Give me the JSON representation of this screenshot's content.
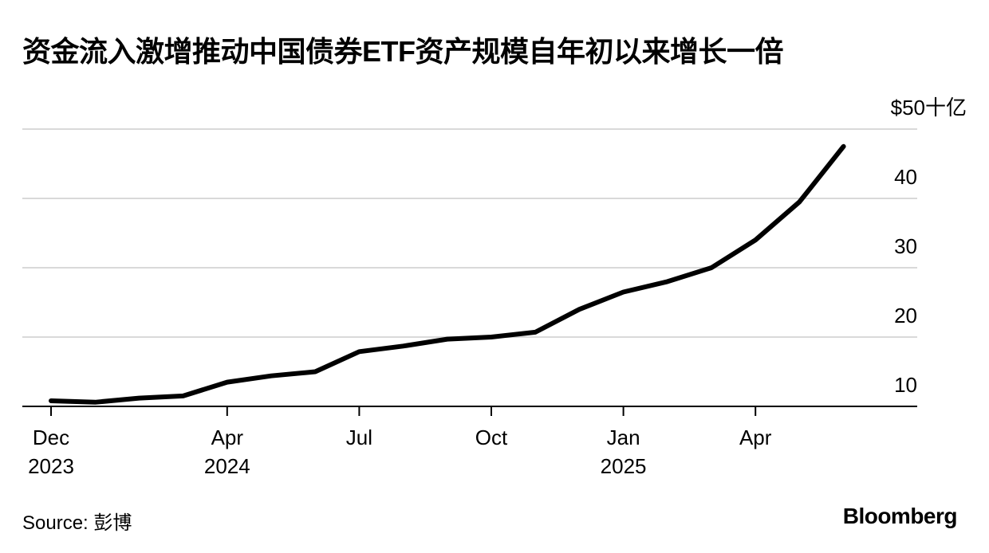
{
  "title": "资金流入激增推动中国债券ETF资产规模自年初以来增长一倍",
  "footer": {
    "source": "Source: 彭博",
    "brand": "Bloomberg"
  },
  "chart_data": {
    "type": "line",
    "title": "资金流入激增推动中国债券ETF资产规模自年初以来增长一倍",
    "xlabel": "",
    "ylabel": "",
    "unit_label": "$50十亿",
    "y_ticks": [
      {
        "value": 50,
        "label": "$50十亿"
      },
      {
        "value": 40,
        "label": "40"
      },
      {
        "value": 30,
        "label": "30"
      },
      {
        "value": 20,
        "label": "20"
      },
      {
        "value": 10,
        "label": "10"
      }
    ],
    "ylim": [
      10,
      50
    ],
    "x_ticks": [
      {
        "label": "Dec",
        "year": "2023",
        "x": "2023-12"
      },
      {
        "label": "Apr",
        "year": "2024",
        "x": "2024-04"
      },
      {
        "label": "Jul",
        "year": "",
        "x": "2024-07"
      },
      {
        "label": "Oct",
        "year": "",
        "x": "2024-10"
      },
      {
        "label": "Jan",
        "year": "2025",
        "x": "2025-01"
      },
      {
        "label": "Apr",
        "year": "",
        "x": "2025-04"
      }
    ],
    "grid": true,
    "series": [
      {
        "name": "",
        "points": [
          {
            "x": "2023-12",
            "y": 10.8
          },
          {
            "x": "2024-01",
            "y": 10.6
          },
          {
            "x": "2024-02",
            "y": 11.2
          },
          {
            "x": "2024-03",
            "y": 11.5
          },
          {
            "x": "2024-04",
            "y": 13.5
          },
          {
            "x": "2024-05",
            "y": 14.4
          },
          {
            "x": "2024-06",
            "y": 15.0
          },
          {
            "x": "2024-07",
            "y": 17.9
          },
          {
            "x": "2024-08",
            "y": 18.7
          },
          {
            "x": "2024-09",
            "y": 19.7
          },
          {
            "x": "2024-10",
            "y": 20.0
          },
          {
            "x": "2024-11",
            "y": 20.7
          },
          {
            "x": "2024-12",
            "y": 24.0
          },
          {
            "x": "2025-01",
            "y": 26.5
          },
          {
            "x": "2025-02",
            "y": 28.0
          },
          {
            "x": "2025-03",
            "y": 30.0
          },
          {
            "x": "2025-04",
            "y": 34.0
          },
          {
            "x": "2025-05",
            "y": 39.5
          },
          {
            "x": "2025-06",
            "y": 47.5
          }
        ]
      }
    ],
    "colors": {
      "line": "#000000",
      "grid": "#d9d9d9",
      "axis": "#000000"
    }
  }
}
